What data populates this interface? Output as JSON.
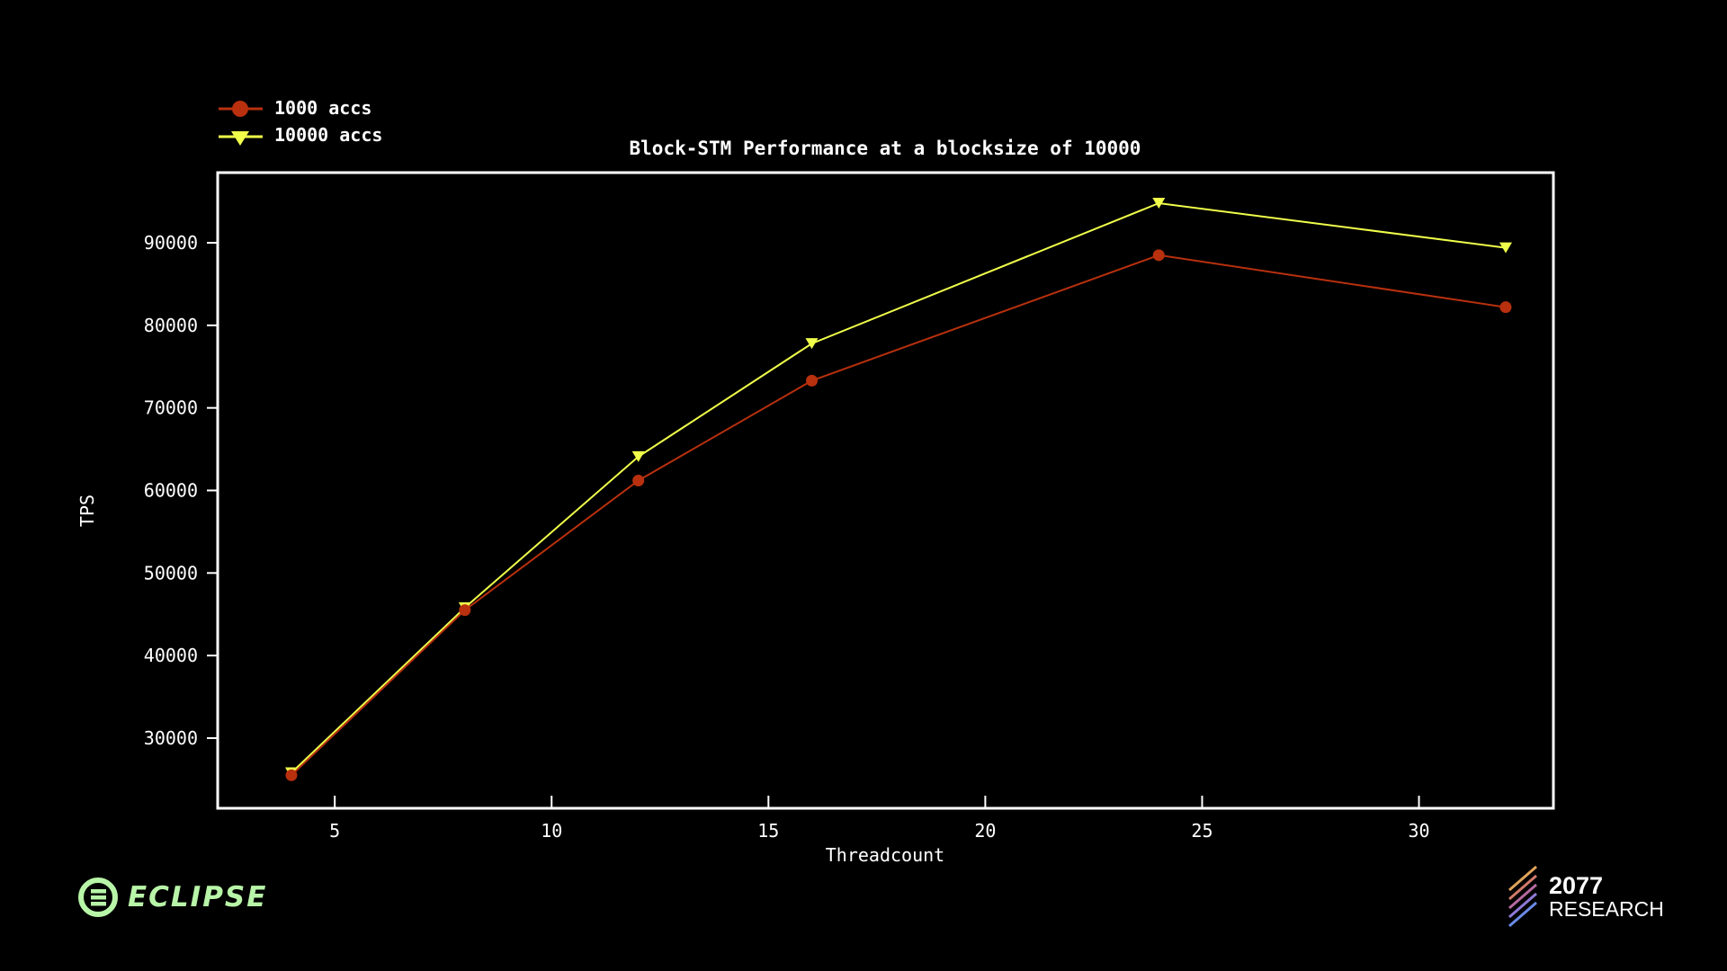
{
  "chart_data": {
    "type": "line",
    "title": "Block-STM Performance at a blocksize of 10000",
    "xlabel": "Threadcount",
    "ylabel": "TPS",
    "xlim": [
      2.3,
      33.1
    ],
    "ylim": [
      21500,
      98500
    ],
    "x_ticks": [
      5,
      10,
      15,
      20,
      25,
      30
    ],
    "y_ticks": [
      30000,
      40000,
      50000,
      60000,
      70000,
      80000,
      90000
    ],
    "grid": false,
    "legend_position": "top-left, outside plot",
    "series": [
      {
        "name": "1000 accs",
        "marker": "circle",
        "color": "#b8300e",
        "x": [
          4,
          8,
          12,
          16,
          24,
          32
        ],
        "y": [
          25500,
          45500,
          61200,
          73300,
          88500,
          82200
        ]
      },
      {
        "name": "10000 accs",
        "marker": "triangle-down",
        "color": "#f0ff4a",
        "x": [
          4,
          8,
          12,
          16,
          24,
          32
        ],
        "y": [
          25800,
          45800,
          64100,
          77800,
          94800,
          89400
        ]
      }
    ]
  },
  "branding": {
    "left_logo_text": "ECLIPSE",
    "right_logo_number": "2077",
    "right_logo_text": "RESEARCH",
    "left_logo_color": "#b8f5a8",
    "left_logo_icon": "eclipse-e-icon",
    "right_logo_icon": "2077-stripes-icon"
  }
}
